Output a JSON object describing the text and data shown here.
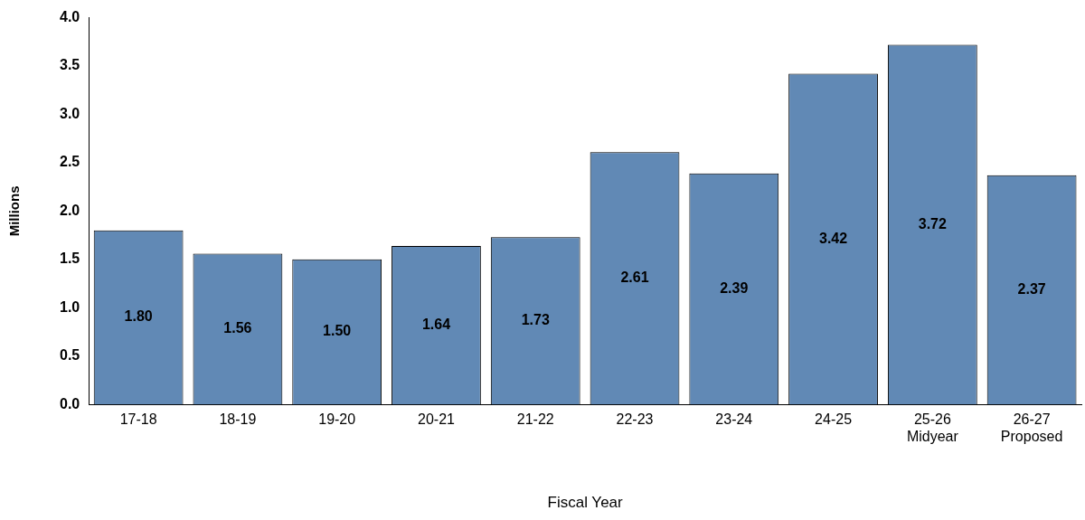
{
  "chart_data": {
    "type": "bar",
    "xlabel": "Fiscal Year",
    "ylabel": "Millions",
    "categories": [
      "17-18",
      "18-19",
      "19-20",
      "20-21",
      "21-22",
      "22-23",
      "23-24",
      "24-25",
      "25-26\nMidyear",
      "26-27\nProposed"
    ],
    "values": [
      1.8,
      1.56,
      1.5,
      1.64,
      1.73,
      2.61,
      2.39,
      3.42,
      3.72,
      2.37
    ],
    "color": "#6189b5",
    "ylim": [
      0,
      4
    ],
    "yticks": [
      {
        "value": 0,
        "label": "0.0"
      },
      {
        "value": 0.5,
        "label": "0.5"
      },
      {
        "value": 1,
        "label": "1.0"
      },
      {
        "value": 1.5,
        "label": "1.5"
      },
      {
        "value": 2,
        "label": "2.0"
      },
      {
        "value": 2.5,
        "label": "2.5"
      },
      {
        "value": 3,
        "label": "3.0"
      },
      {
        "value": 3.5,
        "label": "3.5"
      },
      {
        "value": 4,
        "label": "4.0"
      }
    ],
    "value_labels": [
      "1.80",
      "1.56",
      "1.50",
      "1.64",
      "1.73",
      "2.61",
      "2.39",
      "3.42",
      "3.72",
      "2.37"
    ],
    "grid": false,
    "legend": false
  }
}
